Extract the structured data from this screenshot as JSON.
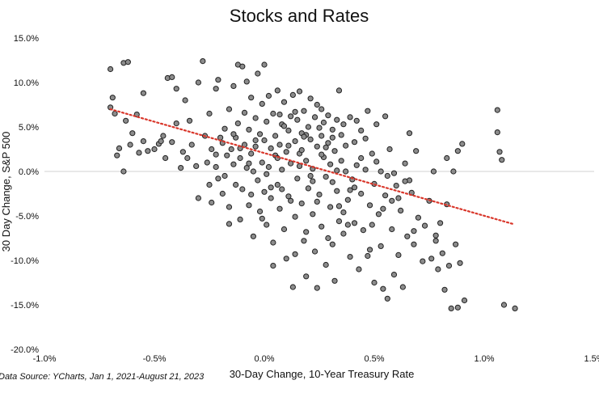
{
  "chart_data": {
    "type": "scatter",
    "title": "Stocks and Rates",
    "xlabel": "30-Day Change, 10-Year Treasury Rate",
    "ylabel": "30 Day Change, S&P 500",
    "source": "Data Source: YCharts, Jan 1, 2021-August 21, 2023",
    "xlim": [
      -1.0,
      1.5
    ],
    "ylim": [
      -20.0,
      15.0
    ],
    "x_ticks": [
      "-1.0%",
      "-0.5%",
      "0.0%",
      "0.5%",
      "1.0%",
      "1.5%"
    ],
    "y_ticks": [
      "15.0%",
      "10.0%",
      "5.0%",
      "0.0%",
      "-5.0%",
      "-10.0%",
      "-15.0%",
      "-20.0%"
    ],
    "zero_line": true,
    "trendline": {
      "style": "dotted",
      "color": "#d9372b",
      "from": [
        -0.7,
        7.0
      ],
      "to": [
        1.13,
        -5.9
      ]
    },
    "marker_color": "#8c8c8c",
    "marker_edge": "#222222",
    "points": [
      [
        -0.7,
        11.5
      ],
      [
        -0.7,
        7.2
      ],
      [
        -0.69,
        8.3
      ],
      [
        -0.68,
        6.5
      ],
      [
        -0.67,
        1.8
      ],
      [
        -0.66,
        2.6
      ],
      [
        -0.64,
        12.2
      ],
      [
        -0.62,
        12.3
      ],
      [
        -0.64,
        0.0
      ],
      [
        -0.63,
        5.7
      ],
      [
        -0.61,
        3.0
      ],
      [
        -0.6,
        4.3
      ],
      [
        -0.58,
        6.4
      ],
      [
        -0.57,
        2.1
      ],
      [
        -0.55,
        3.4
      ],
      [
        -0.55,
        8.8
      ],
      [
        -0.53,
        2.3
      ],
      [
        -0.5,
        2.5
      ],
      [
        -0.48,
        3.1
      ],
      [
        -0.47,
        3.4
      ],
      [
        -0.46,
        4.0
      ],
      [
        -0.45,
        1.5
      ],
      [
        -0.44,
        10.5
      ],
      [
        -0.42,
        10.6
      ],
      [
        -0.42,
        3.3
      ],
      [
        -0.4,
        9.3
      ],
      [
        -0.4,
        5.4
      ],
      [
        -0.38,
        0.4
      ],
      [
        -0.37,
        2.2
      ],
      [
        -0.36,
        8.0
      ],
      [
        -0.35,
        1.5
      ],
      [
        -0.34,
        5.7
      ],
      [
        -0.33,
        3.0
      ],
      [
        -0.31,
        0.6
      ],
      [
        -0.3,
        -3.0
      ],
      [
        -0.3,
        10.0
      ],
      [
        -0.28,
        12.4
      ],
      [
        -0.27,
        4.0
      ],
      [
        -0.26,
        1.0
      ],
      [
        -0.25,
        6.5
      ],
      [
        -0.25,
        -1.5
      ],
      [
        -0.24,
        2.5
      ],
      [
        -0.22,
        0.5
      ],
      [
        -0.22,
        9.3
      ],
      [
        -0.21,
        10.3
      ],
      [
        -0.2,
        3.8
      ],
      [
        -0.19,
        -2.5
      ],
      [
        -0.18,
        -0.5
      ],
      [
        -0.18,
        4.8
      ],
      [
        -0.17,
        1.8
      ],
      [
        -0.16,
        7.0
      ],
      [
        -0.16,
        -4.0
      ],
      [
        -0.15,
        2.5
      ],
      [
        -0.14,
        9.6
      ],
      [
        -0.14,
        0.8
      ],
      [
        -0.13,
        3.8
      ],
      [
        -0.12,
        12.0
      ],
      [
        -0.12,
        5.4
      ],
      [
        -0.11,
        -5.4
      ],
      [
        -0.11,
        1.5
      ],
      [
        -0.1,
        11.8
      ],
      [
        -0.1,
        -2.0
      ],
      [
        -0.09,
        6.6
      ],
      [
        -0.09,
        3.0
      ],
      [
        -0.08,
        0.4
      ],
      [
        -0.08,
        10.1
      ],
      [
        -0.07,
        -3.8
      ],
      [
        -0.07,
        4.7
      ],
      [
        -0.06,
        2.0
      ],
      [
        -0.06,
        8.3
      ],
      [
        -0.05,
        -7.3
      ],
      [
        -0.05,
        0.0
      ],
      [
        -0.04,
        6.0
      ],
      [
        -0.04,
        2.8
      ],
      [
        -0.03,
        -1.0
      ],
      [
        -0.03,
        11.0
      ],
      [
        -0.02,
        4.2
      ],
      [
        -0.02,
        -4.5
      ],
      [
        -0.01,
        1.0
      ],
      [
        -0.01,
        7.6
      ],
      [
        0.0,
        12.0
      ],
      [
        0.0,
        -2.3
      ],
      [
        0.0,
        3.5
      ],
      [
        0.01,
        5.6
      ],
      [
        0.01,
        -6.0
      ],
      [
        0.02,
        0.5
      ],
      [
        0.02,
        8.5
      ],
      [
        0.03,
        2.6
      ],
      [
        0.03,
        -3.0
      ],
      [
        0.04,
        6.5
      ],
      [
        0.04,
        -8.0
      ],
      [
        0.05,
        1.8
      ],
      [
        0.05,
        4.0
      ],
      [
        0.06,
        -1.5
      ],
      [
        0.06,
        9.1
      ],
      [
        0.07,
        3.0
      ],
      [
        0.07,
        -4.2
      ],
      [
        0.08,
        5.3
      ],
      [
        0.08,
        0.2
      ],
      [
        0.09,
        -6.5
      ],
      [
        0.09,
        7.8
      ],
      [
        0.1,
        2.2
      ],
      [
        0.1,
        -9.8
      ],
      [
        0.11,
        4.6
      ],
      [
        0.11,
        -2.8
      ],
      [
        0.12,
        6.2
      ],
      [
        0.12,
        0.9
      ],
      [
        0.13,
        -13.0
      ],
      [
        0.13,
        8.6
      ],
      [
        0.14,
        3.4
      ],
      [
        0.14,
        -5.1
      ],
      [
        0.15,
        5.8
      ],
      [
        0.15,
        -0.8
      ],
      [
        0.16,
        2.0
      ],
      [
        0.16,
        9.0
      ],
      [
        0.17,
        -3.6
      ],
      [
        0.17,
        4.3
      ],
      [
        0.18,
        -7.8
      ],
      [
        0.18,
        6.8
      ],
      [
        0.19,
        1.2
      ],
      [
        0.19,
        -11.8
      ],
      [
        0.2,
        5.0
      ],
      [
        0.2,
        -1.9
      ],
      [
        0.21,
        3.6
      ],
      [
        0.21,
        8.2
      ],
      [
        0.22,
        -4.8
      ],
      [
        0.22,
        0.3
      ],
      [
        0.23,
        6.1
      ],
      [
        0.23,
        -9.0
      ],
      [
        0.24,
        2.8
      ],
      [
        0.24,
        -13.1
      ],
      [
        0.25,
        4.9
      ],
      [
        0.25,
        -2.6
      ],
      [
        0.26,
        7.0
      ],
      [
        0.26,
        -6.2
      ],
      [
        0.27,
        1.6
      ],
      [
        0.27,
        5.5
      ],
      [
        0.28,
        -0.6
      ],
      [
        0.28,
        -10.5
      ],
      [
        0.29,
        3.2
      ],
      [
        0.29,
        6.3
      ],
      [
        0.3,
        -4.0
      ],
      [
        0.3,
        0.8
      ],
      [
        0.31,
        4.7
      ],
      [
        0.31,
        -8.2
      ],
      [
        0.32,
        2.3
      ],
      [
        0.32,
        -12.3
      ],
      [
        0.33,
        5.8
      ],
      [
        0.33,
        -2.2
      ],
      [
        0.34,
        9.1
      ],
      [
        0.34,
        -5.6
      ],
      [
        0.35,
        1.2
      ],
      [
        0.35,
        4.1
      ],
      [
        0.36,
        -7.0
      ],
      [
        0.37,
        0.0
      ],
      [
        0.37,
        2.9
      ],
      [
        0.38,
        -3.2
      ],
      [
        0.39,
        6.1
      ],
      [
        0.39,
        -9.6
      ],
      [
        0.4,
        -0.9
      ],
      [
        0.41,
        3.3
      ],
      [
        0.41,
        -5.8
      ],
      [
        0.42,
        0.7
      ],
      [
        0.43,
        -11.0
      ],
      [
        0.44,
        -2.5
      ],
      [
        0.44,
        4.6
      ],
      [
        0.45,
        -6.6
      ],
      [
        0.46,
        0.2
      ],
      [
        0.47,
        6.8
      ],
      [
        0.47,
        -9.5
      ],
      [
        0.48,
        -3.8
      ],
      [
        0.49,
        2.0
      ],
      [
        0.5,
        -1.4
      ],
      [
        0.5,
        -12.5
      ],
      [
        0.51,
        5.3
      ],
      [
        0.52,
        -4.8
      ],
      [
        0.53,
        0.0
      ],
      [
        0.53,
        -8.4
      ],
      [
        0.54,
        -13.2
      ],
      [
        0.55,
        6.2
      ],
      [
        0.55,
        -2.7
      ],
      [
        0.56,
        -14.3
      ],
      [
        0.57,
        2.5
      ],
      [
        0.58,
        -6.5
      ],
      [
        0.59,
        -11.6
      ],
      [
        0.6,
        -1.6
      ],
      [
        0.61,
        -9.4
      ],
      [
        0.62,
        -4.4
      ],
      [
        0.63,
        -13.0
      ],
      [
        0.64,
        0.9
      ],
      [
        0.65,
        -7.3
      ],
      [
        0.66,
        4.3
      ],
      [
        0.67,
        -2.4
      ],
      [
        0.68,
        -8.2
      ],
      [
        0.69,
        2.3
      ],
      [
        0.7,
        -5.2
      ],
      [
        0.72,
        -10.1
      ],
      [
        0.73,
        -6.1
      ],
      [
        0.75,
        -3.3
      ],
      [
        0.76,
        -9.8
      ],
      [
        0.77,
        0.0
      ],
      [
        0.78,
        -7.2
      ],
      [
        0.79,
        -11.0
      ],
      [
        0.8,
        -5.8
      ],
      [
        0.81,
        -9.2
      ],
      [
        0.82,
        -13.3
      ],
      [
        0.83,
        1.5
      ],
      [
        0.83,
        -3.7
      ],
      [
        0.84,
        -10.6
      ],
      [
        0.85,
        -15.4
      ],
      [
        0.86,
        0.0
      ],
      [
        0.87,
        -8.2
      ],
      [
        0.88,
        2.3
      ],
      [
        0.88,
        -15.3
      ],
      [
        0.89,
        -10.3
      ],
      [
        0.9,
        3.1
      ],
      [
        0.91,
        -14.5
      ],
      [
        1.06,
        6.9
      ],
      [
        1.06,
        4.4
      ],
      [
        1.07,
        2.2
      ],
      [
        1.08,
        1.3
      ],
      [
        1.09,
        -15.0
      ],
      [
        1.14,
        -15.4
      ],
      [
        -0.24,
        -3.5
      ],
      [
        -0.21,
        -0.8
      ],
      [
        -0.13,
        -1.5
      ],
      [
        -0.06,
        -2.6
      ],
      [
        0.01,
        -0.3
      ],
      [
        0.06,
        1.5
      ],
      [
        0.11,
        2.9
      ],
      [
        0.16,
        0.6
      ],
      [
        0.21,
        -0.5
      ],
      [
        0.26,
        1.9
      ],
      [
        0.31,
        3.8
      ],
      [
        0.36,
        5.3
      ],
      [
        0.41,
        -1.8
      ],
      [
        0.46,
        3.7
      ],
      [
        0.51,
        1.1
      ],
      [
        0.56,
        -0.5
      ],
      [
        0.61,
        -3.0
      ],
      [
        0.66,
        -1.0
      ],
      [
        0.14,
        6.7
      ],
      [
        0.24,
        7.5
      ],
      [
        0.19,
        4.1
      ],
      [
        0.29,
        -7.5
      ],
      [
        0.34,
        -3.9
      ],
      [
        0.09,
        5.1
      ],
      [
        -0.04,
        3.5
      ],
      [
        -0.11,
        2.6
      ],
      [
        -0.19,
        3.2
      ],
      [
        0.44,
        1.5
      ],
      [
        0.39,
        -2.1
      ],
      [
        0.49,
        -6.0
      ],
      [
        0.54,
        -4.2
      ],
      [
        0.59,
        -0.2
      ],
      [
        0.64,
        -1.1
      ],
      [
        0.24,
        -3.4
      ],
      [
        0.19,
        -6.8
      ],
      [
        0.14,
        -9.3
      ],
      [
        0.04,
        -10.6
      ],
      [
        -0.01,
        -5.3
      ],
      [
        -0.16,
        -5.9
      ],
      [
        0.31,
        -1.2
      ],
      [
        0.36,
        -4.6
      ],
      [
        0.26,
        4.0
      ],
      [
        0.17,
        2.4
      ],
      [
        0.07,
        6.4
      ],
      [
        -0.14,
        4.2
      ],
      [
        -0.22,
        1.9
      ],
      [
        0.42,
        5.7
      ],
      [
        0.12,
        -3.3
      ],
      [
        0.22,
        -1.1
      ],
      [
        0.03,
        -1.8
      ],
      [
        -0.07,
        0.9
      ],
      [
        0.33,
        0.1
      ],
      [
        0.28,
        2.7
      ],
      [
        0.18,
        3.9
      ],
      [
        0.08,
        -2.0
      ],
      [
        0.38,
        -6.0
      ],
      [
        0.48,
        -8.8
      ],
      [
        0.58,
        -3.3
      ],
      [
        0.68,
        -6.7
      ],
      [
        0.78,
        -7.8
      ]
    ]
  }
}
